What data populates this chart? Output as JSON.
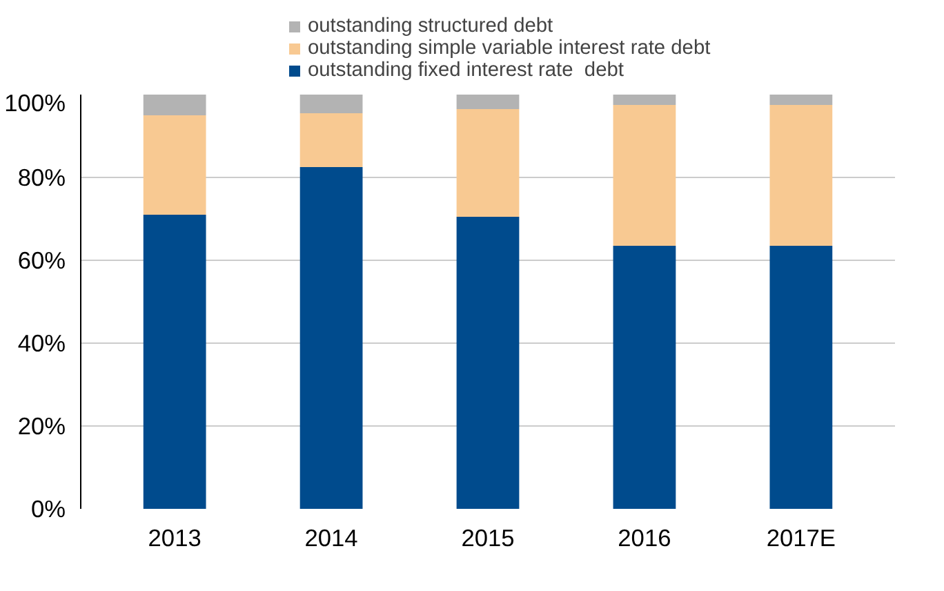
{
  "chart_data": {
    "type": "bar",
    "stacked": true,
    "categories": [
      "2013",
      "2014",
      "2015",
      "2016",
      "2017E"
    ],
    "series": [
      {
        "name": "outstanding fixed interest rate  debt",
        "color": "#004b8d",
        "values": [
          71,
          82.5,
          70.5,
          63.5,
          63.5
        ]
      },
      {
        "name": "outstanding simple variable interest rate debt",
        "color": "#f8c992",
        "values": [
          24,
          13,
          26,
          34,
          34
        ]
      },
      {
        "name": "outstanding structured debt",
        "color": "#b3b3b3",
        "values": [
          5,
          4.5,
          3.5,
          2.5,
          2.5
        ]
      }
    ],
    "ylim": [
      0,
      100
    ],
    "yticks": [
      {
        "value": 0,
        "label": "0%"
      },
      {
        "value": 20,
        "label": "20%"
      },
      {
        "value": 40,
        "label": "40%"
      },
      {
        "value": 60,
        "label": "60%"
      },
      {
        "value": 80,
        "label": "80%"
      },
      {
        "value": 100,
        "label": "100%"
      }
    ],
    "grid": "y",
    "legend": "top"
  }
}
